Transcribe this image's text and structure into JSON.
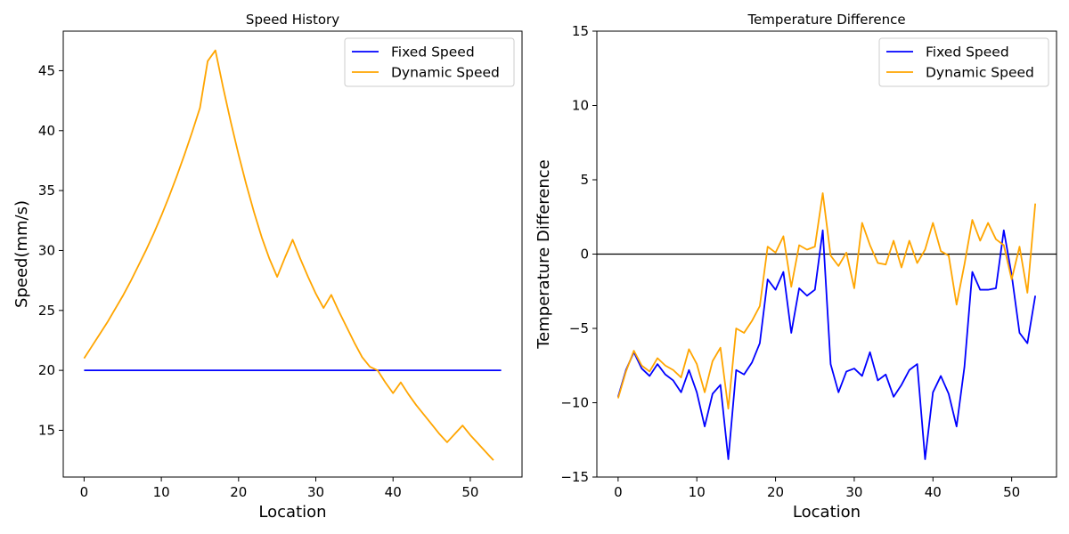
{
  "chart_data": [
    {
      "type": "line",
      "title": "Speed History",
      "xlabel": "Location",
      "ylabel": "Speed(mm/s)",
      "xlim": [
        -2.7,
        56.7
      ],
      "ylim": [
        11.1,
        48.3
      ],
      "xticks": [
        0,
        10,
        20,
        30,
        40,
        50
      ],
      "yticks": [
        15,
        20,
        25,
        30,
        35,
        40,
        45
      ],
      "grid": false,
      "legend_position": "top-right",
      "series": [
        {
          "name": "Fixed Speed",
          "color": "#0000ff",
          "x": [
            0,
            54
          ],
          "y": [
            20,
            20
          ]
        },
        {
          "name": "Dynamic Speed",
          "color": "#ffa500",
          "x": [
            0,
            1,
            2,
            3,
            4,
            5,
            6,
            7,
            8,
            9,
            10,
            11,
            12,
            13,
            14,
            15,
            16,
            17,
            18,
            19,
            20,
            21,
            22,
            23,
            24,
            25,
            26,
            27,
            28,
            29,
            30,
            31,
            32,
            33,
            34,
            35,
            36,
            37,
            38,
            39,
            40,
            41,
            42,
            43,
            44,
            45,
            46,
            47,
            48,
            49,
            50,
            51,
            52,
            53
          ],
          "y": [
            21.0,
            22.0,
            23.0,
            24.0,
            25.1,
            26.2,
            27.4,
            28.7,
            30.0,
            31.4,
            32.9,
            34.5,
            36.2,
            38.0,
            39.9,
            41.9,
            45.8,
            46.7,
            43.6,
            40.7,
            38.0,
            35.5,
            33.2,
            31.1,
            29.3,
            27.8,
            29.4,
            30.9,
            29.3,
            27.8,
            26.4,
            25.2,
            26.3,
            24.9,
            23.6,
            22.3,
            21.1,
            20.3,
            20.0,
            19.0,
            18.1,
            19.0,
            18.0,
            17.1,
            16.3,
            15.5,
            14.7,
            14.0,
            14.7,
            15.4,
            14.6,
            13.9,
            13.2,
            12.5
          ]
        }
      ]
    },
    {
      "type": "line",
      "title": "Temperature Difference",
      "xlabel": "Location",
      "ylabel": "Temperature Difference",
      "xlim": [
        -2.7,
        55.7
      ],
      "ylim": [
        -15,
        15
      ],
      "xticks": [
        0,
        10,
        20,
        30,
        40,
        50
      ],
      "yticks": [
        -15,
        -10,
        -5,
        0,
        5,
        10,
        15
      ],
      "hline": 0,
      "grid": false,
      "legend_position": "top-right",
      "series": [
        {
          "name": "Fixed Speed",
          "color": "#0000ff",
          "x": [
            0,
            1,
            2,
            3,
            4,
            5,
            6,
            7,
            8,
            9,
            10,
            11,
            12,
            13,
            14,
            15,
            16,
            17,
            18,
            19,
            20,
            21,
            22,
            23,
            24,
            25,
            26,
            27,
            28,
            29,
            30,
            31,
            32,
            33,
            34,
            35,
            36,
            37,
            38,
            39,
            40,
            41,
            42,
            43,
            44,
            45,
            46,
            47,
            48,
            49,
            50,
            51,
            52,
            53
          ],
          "y": [
            -9.6,
            -7.8,
            -6.6,
            -7.7,
            -8.2,
            -7.4,
            -8.1,
            -8.5,
            -9.3,
            -7.8,
            -9.3,
            -11.6,
            -9.4,
            -8.8,
            -13.8,
            -7.8,
            -8.1,
            -7.3,
            -6.0,
            -1.7,
            -2.4,
            -1.2,
            -5.3,
            -2.3,
            -2.8,
            -2.4,
            1.6,
            -7.4,
            -9.3,
            -7.9,
            -7.7,
            -8.2,
            -6.6,
            -8.5,
            -8.1,
            -9.6,
            -8.8,
            -7.8,
            -7.4,
            -13.8,
            -9.3,
            -8.2,
            -9.4,
            -11.6,
            -7.6,
            -1.2,
            -2.4,
            -2.4,
            -2.3,
            1.6,
            -1.4,
            -5.3,
            -6.0,
            -2.8
          ]
        },
        {
          "name": "Dynamic Speed",
          "color": "#ffa500",
          "x": [
            0,
            1,
            2,
            3,
            4,
            5,
            6,
            7,
            8,
            9,
            10,
            11,
            12,
            13,
            14,
            15,
            16,
            17,
            18,
            19,
            20,
            21,
            22,
            23,
            24,
            25,
            26,
            27,
            28,
            29,
            30,
            31,
            32,
            33,
            34,
            35,
            36,
            37,
            38,
            39,
            40,
            41,
            42,
            43,
            44,
            45,
            46,
            47,
            48,
            49,
            50,
            51,
            52,
            53
          ],
          "y": [
            -9.7,
            -7.9,
            -6.5,
            -7.5,
            -7.9,
            -7.0,
            -7.5,
            -7.8,
            -8.3,
            -6.4,
            -7.4,
            -9.3,
            -7.2,
            -6.3,
            -10.4,
            -5.0,
            -5.3,
            -4.5,
            -3.5,
            0.5,
            0.1,
            1.2,
            -2.2,
            0.6,
            0.3,
            0.5,
            4.1,
            -0.1,
            -0.8,
            0.1,
            -2.3,
            2.1,
            0.6,
            -0.6,
            -0.7,
            0.9,
            -0.9,
            0.9,
            -0.6,
            0.3,
            2.1,
            0.2,
            -0.1,
            -3.4,
            -0.7,
            2.3,
            0.9,
            2.1,
            1.0,
            0.6,
            -1.7,
            0.5,
            -2.6,
            3.4
          ]
        }
      ]
    }
  ]
}
